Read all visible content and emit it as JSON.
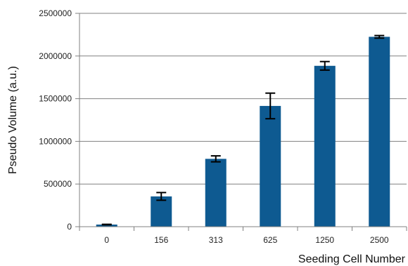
{
  "chart_data": {
    "type": "bar",
    "title": "",
    "xlabel": "Seeding Cell Number",
    "ylabel": "Pseudo Volume (a.u.)",
    "categories": [
      "0",
      "156",
      "313",
      "625",
      "1250",
      "2500"
    ],
    "series": [
      {
        "values": [
          25000,
          355000,
          795000,
          1415000,
          1885000,
          2225000
        ],
        "error": [
          3000,
          45000,
          35000,
          150000,
          50000,
          15000
        ]
      }
    ],
    "ylim": [
      0,
      2500000
    ],
    "yticks": [
      0,
      500000,
      1000000,
      1500000,
      2000000,
      2500000
    ],
    "ytick_labels": [
      "0",
      "500000",
      "1000000",
      "1500000",
      "2000000",
      "2500000"
    ],
    "grid": true,
    "legend": "none",
    "colors": {
      "bar": "#0E5A91",
      "error": "#000000",
      "grid": "#808080",
      "axis": "#808080"
    }
  }
}
